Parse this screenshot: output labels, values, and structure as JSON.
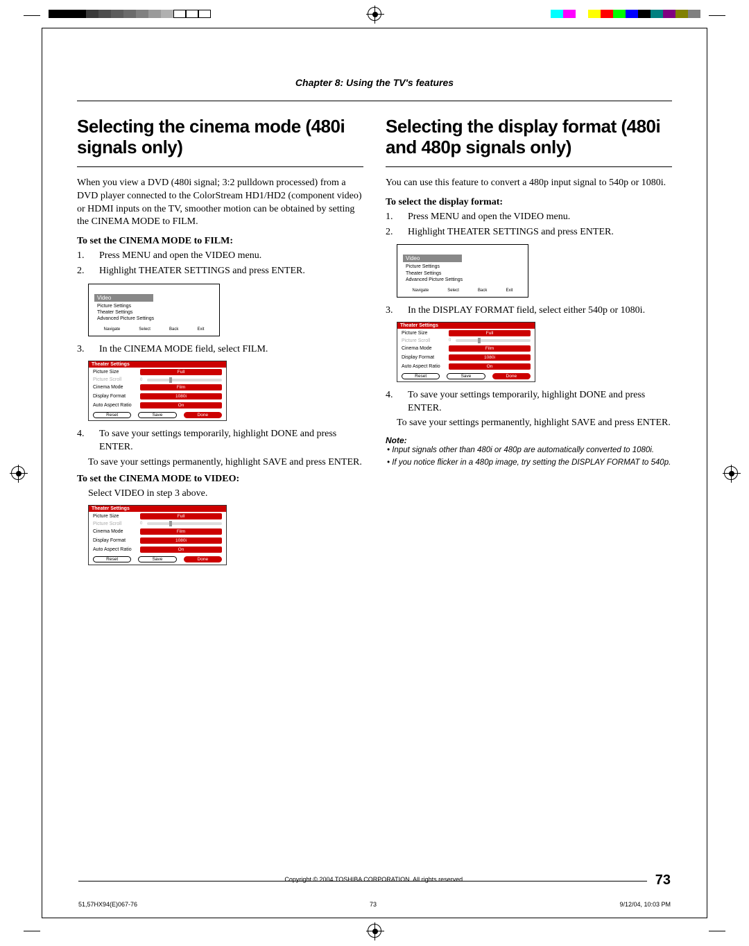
{
  "registration": {
    "colors_left": [
      "#000",
      "#000",
      "#000",
      "#3a3a3a",
      "#4d4d4d",
      "#5c5c5c",
      "#6b6b6b",
      "#808080",
      "#9a9a9a",
      "#b0b0b0",
      "#fff",
      "#fff",
      "#fff"
    ],
    "colors_right": [
      "#00ffff",
      "#ff00ff",
      "#fff",
      "#ffff00",
      "#ff0000",
      "#00ff00",
      "#0000ff",
      "#000",
      "#008080",
      "#800080",
      "#808000",
      "#808080"
    ]
  },
  "chapter": "Chapter 8: Using the TV's features",
  "left": {
    "title": "Selecting the cinema mode (480i signals only)",
    "intro": "When you view a DVD (480i signal; 3:2 pulldown processed) from a DVD player connected to the ColorStream HD1/HD2 (component video) or HDMI inputs on the TV, smoother motion can be obtained by setting the CINEMA MODE to FILM.",
    "sub1": "To set the CINEMA MODE to FILM:",
    "steps1": [
      "Press MENU and open the VIDEO menu.",
      "Highlight THEATER SETTINGS and press ENTER."
    ],
    "step3": "In the CINEMA MODE field, select FILM.",
    "step4a": "To save your settings temporarily, highlight DONE and press ENTER.",
    "step4b": "To save your settings permanently, highlight SAVE and press ENTER.",
    "sub2": "To set the CINEMA MODE to VIDEO:",
    "sub2_text": "Select VIDEO in step 3 above."
  },
  "right": {
    "title": "Selecting the display format (480i and 480p signals only)",
    "intro": "You can use this feature to convert a 480p input signal to 540p or 1080i.",
    "sub1": "To select the display format:",
    "steps1": [
      "Press MENU and open the VIDEO menu.",
      "Highlight THEATER SETTINGS and press ENTER."
    ],
    "step3": "In the DISPLAY FORMAT field, select either 540p or 1080i.",
    "step4a": "To save your settings temporarily, highlight DONE and press ENTER.",
    "step4b": "To save your settings permanently, highlight SAVE and press ENTER.",
    "note_head": "Note:",
    "notes": [
      "Input signals other than 480i or 480p are automatically converted to 1080i.",
      "If you notice flicker in a 480p image, try setting the DISPLAY FORMAT to 540p."
    ]
  },
  "video_menu": {
    "title": "Video",
    "items": [
      "Picture Settings",
      "Theater Settings",
      "Advanced Picture Settings"
    ],
    "footer": [
      "Navigate",
      "Select",
      "Back",
      "Exit"
    ]
  },
  "theater": {
    "title": "Theater Settings",
    "rows": [
      {
        "label": "Picture Size",
        "val": "Full",
        "hl": true
      },
      {
        "label": "Picture Scroll",
        "type": "slider",
        "num": "0"
      },
      {
        "label": "Cinema Mode",
        "val": "Film",
        "hl": true
      },
      {
        "label": "Display Format",
        "val": "1080i",
        "hl": true
      },
      {
        "label": "Auto Aspect Ratio",
        "val": "On",
        "hl": true
      }
    ],
    "buttons": [
      "Reset",
      "Save",
      "Done"
    ]
  },
  "footer": {
    "copyright": "Copyright © 2004 TOSHIBA CORPORATION. All rights reserved.",
    "page": "73",
    "doc": "51,57HX94(E)067-76",
    "midpage": "73",
    "date": "9/12/04, 10:03 PM"
  }
}
